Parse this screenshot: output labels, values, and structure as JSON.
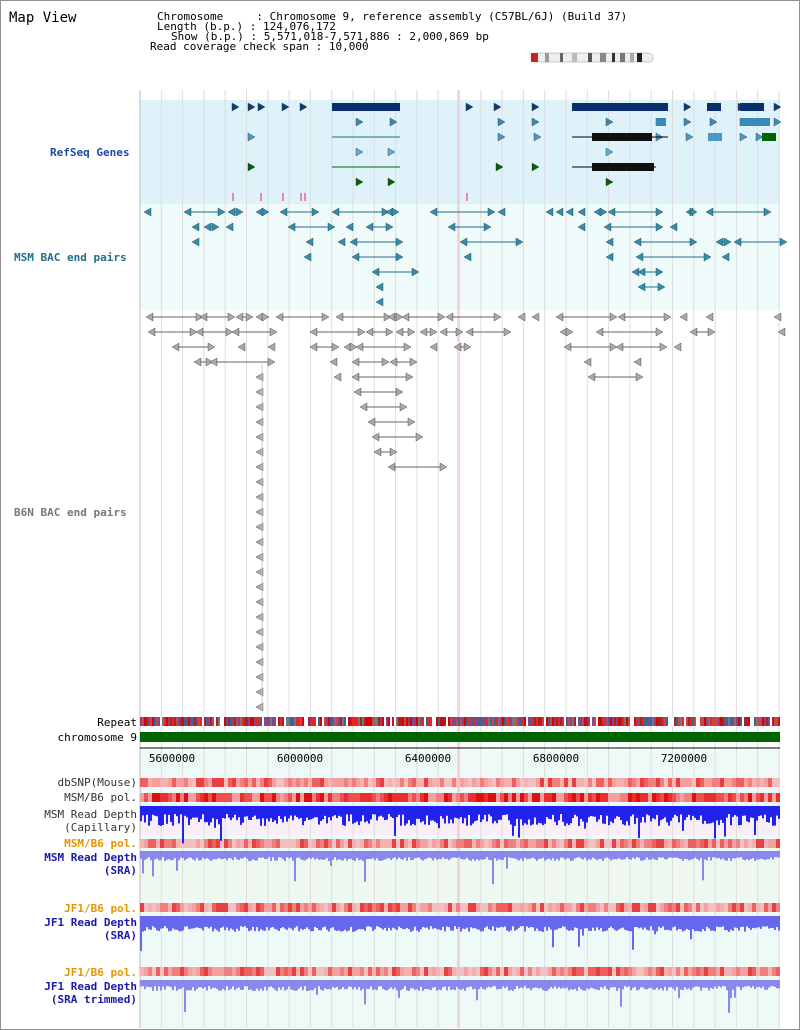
{
  "page_title": "Map View",
  "info": {
    "chromosome_label": "Chromosome",
    "chromosome_value": "Chromosome 9, reference assembly (C57BL/6J) (Build 37)",
    "length_label": "Length (b.p.)",
    "length_value": "124,076,172",
    "show_label": "Show (b.p.)",
    "show_value": "5,571,018-7,571,886 : 2,000,869 bp",
    "coverage_label": "Read coverage check span",
    "coverage_value": "10,000"
  },
  "tracks": {
    "refseq": "RefSeq Genes",
    "msm_bac": "MSM BAC end pairs",
    "b6n_bac": "B6N BAC end pairs",
    "repeat": "Repeat",
    "chromosome": "chromosome 9",
    "dbsnp": "dbSNP(Mouse)",
    "msm_b6_pol": "MSM/B6 pol.",
    "msm_depth_cap_1": "MSM Read Depth",
    "msm_depth_cap_2": "(Capillary)",
    "msm_b6_pol2": "MSM/B6 pol.",
    "msm_depth_sra_1": "MSM Read Depth",
    "msm_depth_sra_2": "(SRA)",
    "jf1_b6_pol": "JF1/B6 pol.",
    "jf1_depth_sra_1": "JF1 Read Depth",
    "jf1_depth_sra_2": "(SRA)",
    "jf1_b6_pol2": "JF1/B6 pol.",
    "jf1_depth_trim_1": "JF1 Read Depth",
    "jf1_depth_trim_2": "(SRA trimmed)"
  },
  "axis": {
    "ticks": [
      "5600000",
      "6000000",
      "6400000",
      "6800000",
      "7200000"
    ]
  },
  "colors": {
    "refseq_label": "#1f4aa8",
    "msm_label": "#1f6f8a",
    "b6n_label": "#777777",
    "pol_orange": "#e69500",
    "depth_blue": "#1a1aa8",
    "chromosome_green": "#006400"
  }
}
